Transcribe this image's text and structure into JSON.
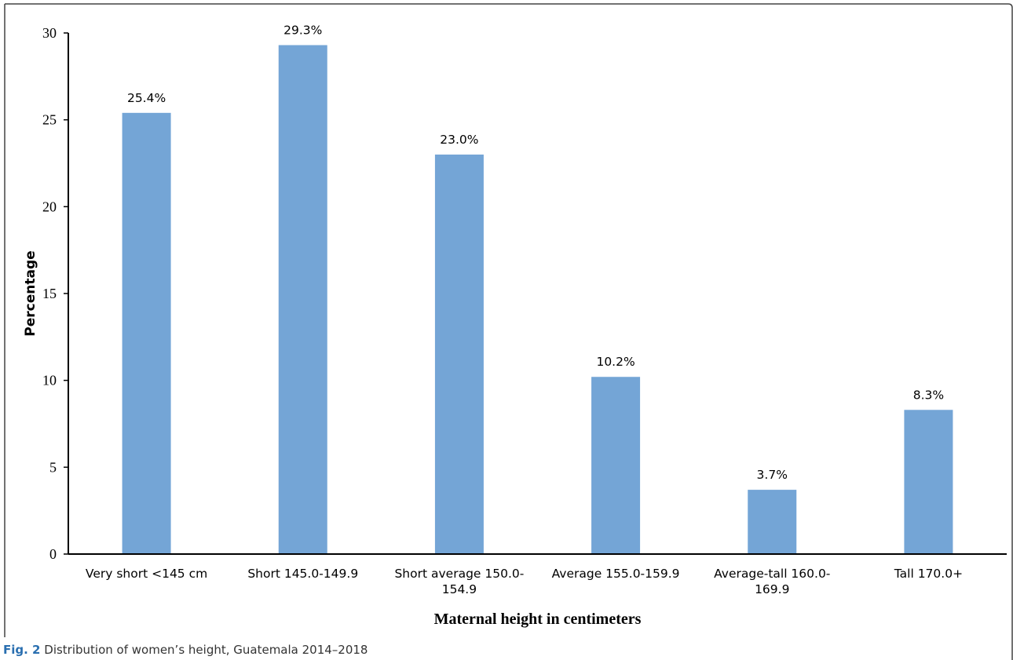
{
  "caption": {
    "figure_number": "Fig. 2",
    "text": "Distribution of women’s height, Guatemala 2014–2018"
  },
  "colors": {
    "bar": "#74a5d6",
    "axis": "#000000",
    "frame": "#444444",
    "caption_accent": "#2a6fb0"
  },
  "chart_data": {
    "type": "bar",
    "title": "",
    "xlabel": "Maternal height in centimeters",
    "ylabel": "Percentage",
    "ylim": [
      0,
      30
    ],
    "yticks": [
      0,
      5,
      10,
      15,
      20,
      25,
      30
    ],
    "grid": false,
    "legend": "none",
    "categories": [
      [
        "Very short <145 cm"
      ],
      [
        "Short 145.0-149.9"
      ],
      [
        "Short average 150.0-",
        "154.9"
      ],
      [
        "Average 155.0-159.9"
      ],
      [
        "Average-tall 160.0-",
        "169.9"
      ],
      [
        "Tall 170.0+"
      ]
    ],
    "values": [
      25.4,
      29.3,
      23.0,
      10.2,
      3.7,
      8.3
    ],
    "data_labels": [
      "25.4%",
      "29.3%",
      "23.0%",
      "10.2%",
      "3.7%",
      "8.3%"
    ]
  }
}
